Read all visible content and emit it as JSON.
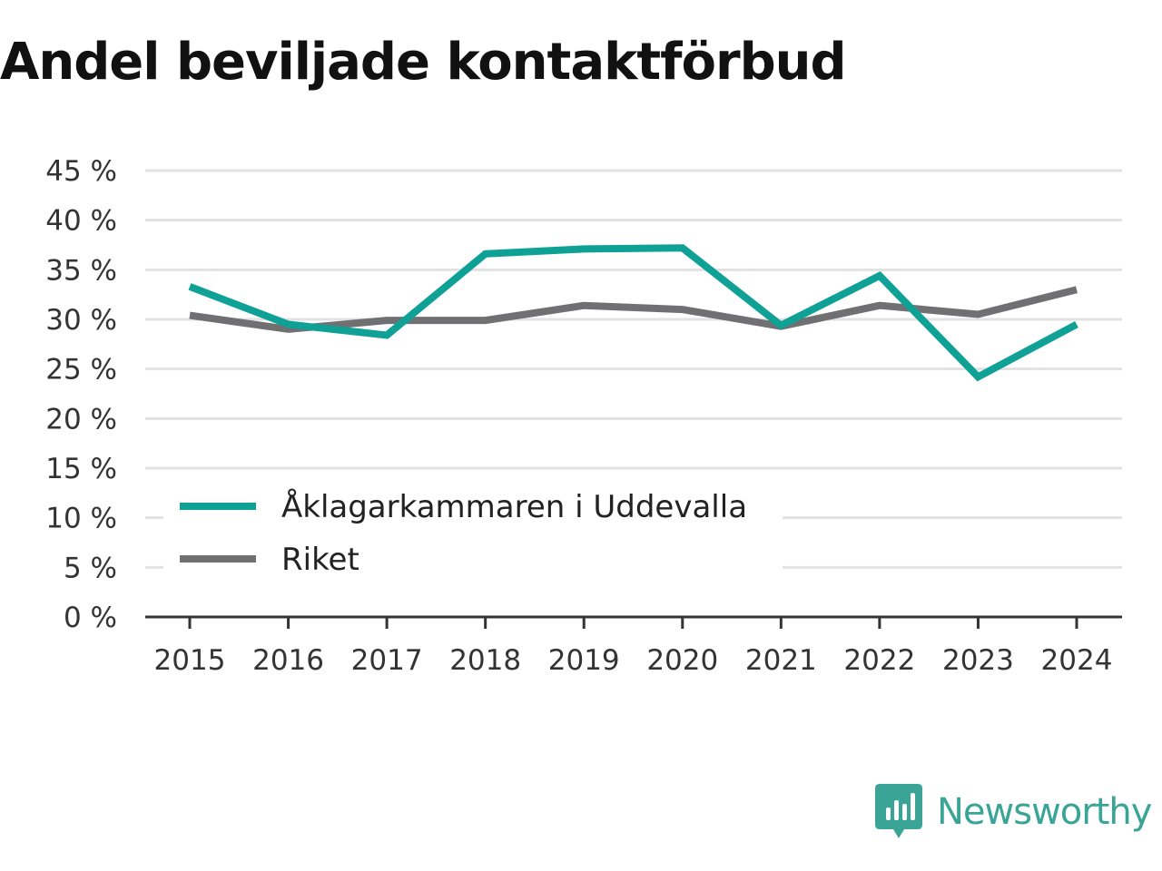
{
  "title": "Andel beviljade kontaktförbud",
  "brand": {
    "name": "Newsworthy",
    "color": "#3aa597"
  },
  "chart_data": {
    "type": "line",
    "title": "Andel beviljade kontaktförbud",
    "xlabel": "",
    "ylabel": "",
    "x": [
      "2015",
      "2016",
      "2017",
      "2018",
      "2019",
      "2020",
      "2021",
      "2022",
      "2023",
      "2024"
    ],
    "y_unit": "%",
    "ylim": [
      0,
      45
    ],
    "yticks": [
      0,
      5,
      10,
      15,
      20,
      25,
      30,
      35,
      40,
      45
    ],
    "ytick_labels": [
      "0 %",
      "5 %",
      "10 %",
      "15 %",
      "20 %",
      "25 %",
      "30 %",
      "35 %",
      "40 %",
      "45 %"
    ],
    "grid": true,
    "legend": "bottom-left",
    "series": [
      {
        "name": "Åklagarkammaren i Uddevalla",
        "color": "#0fa196",
        "values": [
          33.3,
          29.5,
          28.4,
          36.6,
          37.1,
          37.2,
          29.4,
          34.4,
          24.2,
          29.5
        ]
      },
      {
        "name": "Riket",
        "color": "#707073",
        "values": [
          30.4,
          29.0,
          29.9,
          29.9,
          31.4,
          31.0,
          29.3,
          31.4,
          30.5,
          33.0
        ]
      }
    ]
  }
}
